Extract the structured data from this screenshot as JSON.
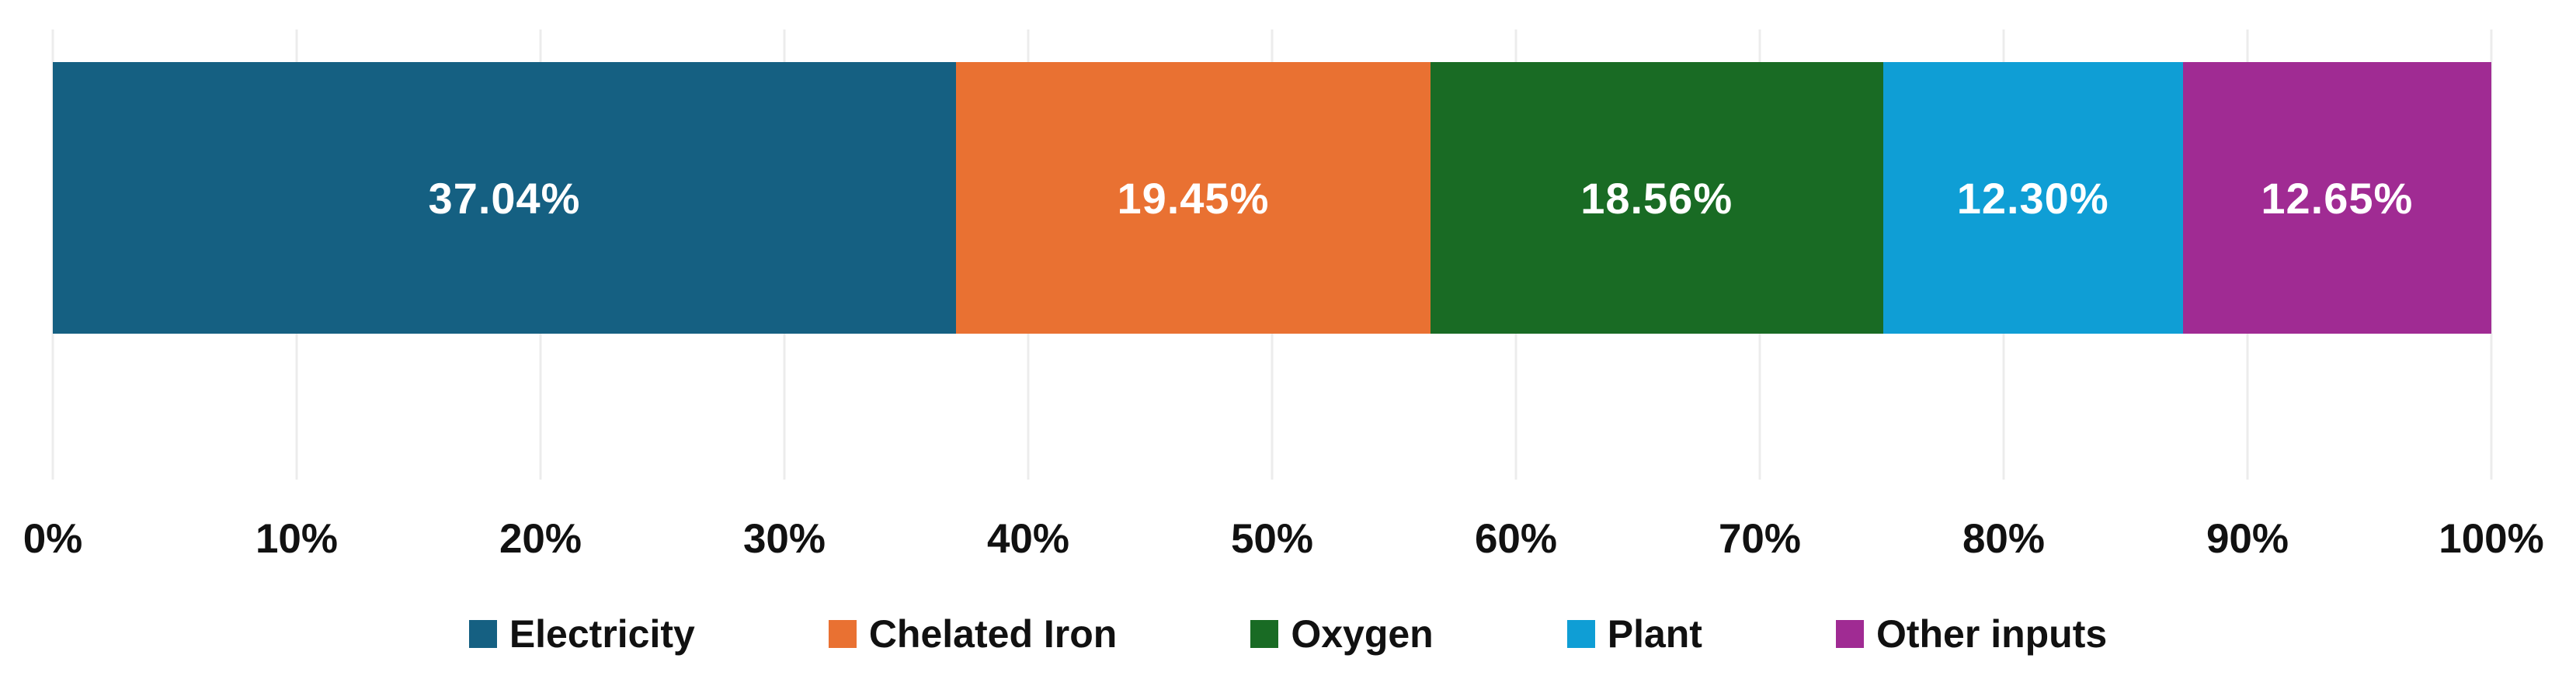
{
  "chart_data": {
    "type": "bar",
    "subtype": "horizontal-stacked-100",
    "title": "",
    "xlabel": "",
    "ylabel": "",
    "grid": true,
    "axis_range": [
      0,
      100
    ],
    "x_axis_ticks": [
      "0%",
      "10%",
      "20%",
      "30%",
      "40%",
      "50%",
      "60%",
      "70%",
      "80%",
      "90%",
      "100%"
    ],
    "legend_position": "bottom",
    "series": [
      {
        "name": "Electricity",
        "value": 37.04,
        "data_label": "37.04%",
        "color": "#156082"
      },
      {
        "name": "Chelated Iron",
        "value": 19.45,
        "data_label": "19.45%",
        "color": "#E97132"
      },
      {
        "name": "Oxygen",
        "value": 18.56,
        "data_label": "18.56%",
        "color": "#196B24"
      },
      {
        "name": "Plant",
        "value": 12.3,
        "data_label": "12.30%",
        "color": "#0F9ED5"
      },
      {
        "name": "Other inputs",
        "value": 12.65,
        "data_label": "12.65%",
        "color": "#A02B93"
      }
    ]
  },
  "colors": {
    "background": "#FFFFFF",
    "gridline": "#ECECEC",
    "axis_text": "#111111",
    "data_label_text": "#FFFFFF"
  }
}
